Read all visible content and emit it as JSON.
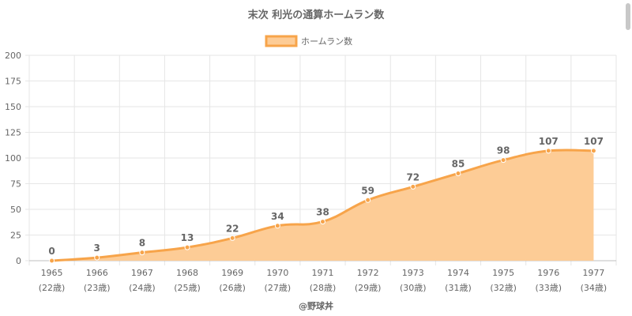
{
  "chart_data": {
    "type": "area",
    "title": "末次 利光の通算ホームラン数",
    "legend": {
      "label": "ホームラン数",
      "placement": "top-center"
    },
    "categories": [
      "1965",
      "1966",
      "1967",
      "1968",
      "1969",
      "1970",
      "1971",
      "1972",
      "1973",
      "1974",
      "1975",
      "1976",
      "1977"
    ],
    "age_labels": [
      "(22歳)",
      "(23歳)",
      "(24歳)",
      "(25歳)",
      "(26歳)",
      "(27歳)",
      "(28歳)",
      "(29歳)",
      "(30歳)",
      "(31歳)",
      "(32歳)",
      "(33歳)",
      "(34歳)"
    ],
    "series": [
      {
        "name": "ホームラン数",
        "values": [
          0,
          3,
          8,
          13,
          22,
          34,
          38,
          59,
          72,
          85,
          98,
          107,
          107
        ]
      }
    ],
    "ylim": [
      0,
      200
    ],
    "yticks": [
      0,
      25,
      50,
      75,
      100,
      125,
      150,
      175,
      200
    ],
    "grid": true,
    "colors": {
      "line": "#f7a44a",
      "fill": "#fdcc96",
      "point": "#f7a44a"
    }
  },
  "credit": "@野球丼"
}
